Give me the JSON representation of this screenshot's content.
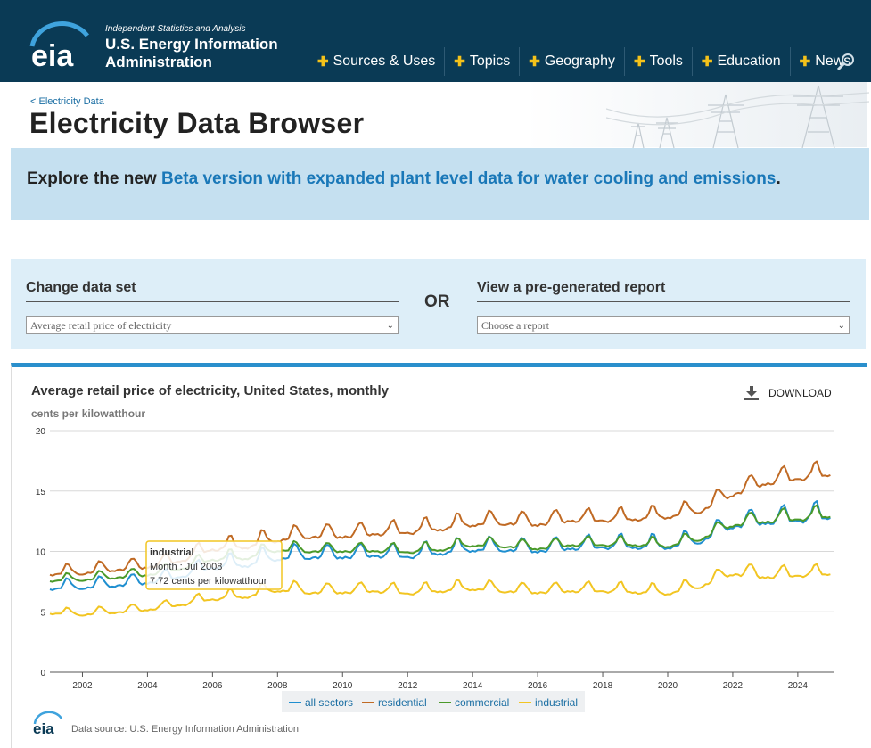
{
  "header": {
    "tagline": "Independent Statistics and Analysis",
    "agency_line1": "U.S. Energy Information",
    "agency_line2": "Administration",
    "logo_text": "eia",
    "nav": [
      {
        "label": "Sources & Uses"
      },
      {
        "label": "Topics"
      },
      {
        "label": "Geography"
      },
      {
        "label": "Tools"
      },
      {
        "label": "Education"
      },
      {
        "label": "News"
      }
    ],
    "colors": {
      "bar": "#0a3a55",
      "plus": "#f4c21a"
    }
  },
  "page": {
    "breadcrumb": "< Electricity Data",
    "title": "Electricity Data Browser"
  },
  "banner": {
    "prefix": "Explore the new ",
    "link": "Beta version with expanded plant level data for water cooling and emissions",
    "suffix": "."
  },
  "selectors": {
    "dataset_label": "Change data set",
    "dataset_value": "Average retail price of electricity",
    "or_label": "OR",
    "report_label": "View a pre-generated report",
    "report_value": "Choose a report"
  },
  "chart_panel": {
    "download_label": "DOWNLOAD",
    "source_text": "Data source: U.S. Energy Information Administration"
  },
  "chart_data": {
    "type": "line",
    "title": "Average retail price of electricity, United States, monthly",
    "ylabel": "cents per kilowatthour",
    "xlabel": "",
    "xlim": [
      2001,
      2025.1
    ],
    "ylim": [
      0,
      20
    ],
    "yticks": [
      0,
      5,
      10,
      15,
      20
    ],
    "xticks": [
      2002,
      2004,
      2006,
      2008,
      2010,
      2012,
      2014,
      2016,
      2018,
      2020,
      2022,
      2024
    ],
    "grid": true,
    "legend_position": "bottom",
    "series": [
      {
        "name": "all sectors",
        "color": "#1f8fd0",
        "anchors": [
          [
            2001,
            7.1
          ],
          [
            2002,
            7.2
          ],
          [
            2003,
            7.4
          ],
          [
            2004,
            7.6
          ],
          [
            2005,
            8.1
          ],
          [
            2006,
            8.9
          ],
          [
            2007,
            9.1
          ],
          [
            2008,
            9.7
          ],
          [
            2009,
            9.8
          ],
          [
            2010,
            9.8
          ],
          [
            2011,
            9.9
          ],
          [
            2012,
            9.8
          ],
          [
            2013,
            10.1
          ],
          [
            2014,
            10.4
          ],
          [
            2015,
            10.4
          ],
          [
            2016,
            10.3
          ],
          [
            2017,
            10.5
          ],
          [
            2018,
            10.6
          ],
          [
            2019,
            10.6
          ],
          [
            2020,
            10.6
          ],
          [
            2021,
            11.1
          ],
          [
            2022,
            12.4
          ],
          [
            2023,
            12.7
          ],
          [
            2024,
            12.9
          ],
          [
            2025,
            13.1
          ]
        ],
        "amp": [
          0.55,
          0.6,
          0.6,
          0.6,
          0.65,
          0.75,
          0.8,
          0.8,
          0.75,
          0.75,
          0.75,
          0.75,
          0.75,
          0.75,
          0.75,
          0.75,
          0.75,
          0.75,
          0.75,
          0.75,
          0.8,
          0.9,
          0.95,
          1.0,
          1.0
        ]
      },
      {
        "name": "residential",
        "color": "#c06a24",
        "anchors": [
          [
            2001,
            8.3
          ],
          [
            2002,
            8.4
          ],
          [
            2003,
            8.7
          ],
          [
            2004,
            8.9
          ],
          [
            2005,
            9.4
          ],
          [
            2006,
            10.4
          ],
          [
            2007,
            10.6
          ],
          [
            2008,
            11.2
          ],
          [
            2009,
            11.5
          ],
          [
            2010,
            11.5
          ],
          [
            2011,
            11.7
          ],
          [
            2012,
            11.8
          ],
          [
            2013,
            12.1
          ],
          [
            2014,
            12.5
          ],
          [
            2015,
            12.6
          ],
          [
            2016,
            12.5
          ],
          [
            2017,
            12.8
          ],
          [
            2018,
            12.8
          ],
          [
            2019,
            12.9
          ],
          [
            2020,
            13.1
          ],
          [
            2021,
            13.6
          ],
          [
            2022,
            15.0
          ],
          [
            2023,
            15.9
          ],
          [
            2024,
            16.3
          ],
          [
            2025,
            16.6
          ]
        ],
        "amp": [
          0.55,
          0.6,
          0.6,
          0.6,
          0.65,
          0.7,
          0.75,
          0.75,
          0.75,
          0.75,
          0.75,
          0.75,
          0.75,
          0.75,
          0.75,
          0.75,
          0.7,
          0.7,
          0.7,
          0.7,
          0.75,
          0.8,
          0.85,
          0.85,
          0.85
        ]
      },
      {
        "name": "commercial",
        "color": "#4a9a2a",
        "anchors": [
          [
            2001,
            7.7
          ],
          [
            2002,
            7.8
          ],
          [
            2003,
            8.0
          ],
          [
            2004,
            8.2
          ],
          [
            2005,
            8.7
          ],
          [
            2006,
            9.5
          ],
          [
            2007,
            9.6
          ],
          [
            2008,
            10.3
          ],
          [
            2009,
            10.2
          ],
          [
            2010,
            10.2
          ],
          [
            2011,
            10.2
          ],
          [
            2012,
            10.1
          ],
          [
            2013,
            10.3
          ],
          [
            2014,
            10.7
          ],
          [
            2015,
            10.6
          ],
          [
            2016,
            10.4
          ],
          [
            2017,
            10.7
          ],
          [
            2018,
            10.7
          ],
          [
            2019,
            10.7
          ],
          [
            2020,
            10.6
          ],
          [
            2021,
            11.2
          ],
          [
            2022,
            12.4
          ],
          [
            2023,
            12.7
          ],
          [
            2024,
            12.9
          ],
          [
            2025,
            13.1
          ]
        ],
        "amp": [
          0.4,
          0.45,
          0.45,
          0.45,
          0.5,
          0.55,
          0.55,
          0.55,
          0.5,
          0.5,
          0.5,
          0.5,
          0.5,
          0.5,
          0.5,
          0.5,
          0.5,
          0.5,
          0.5,
          0.5,
          0.55,
          0.65,
          0.7,
          0.7,
          0.7
        ]
      },
      {
        "name": "industrial",
        "color": "#f2c522",
        "anchors": [
          [
            2001,
            5.0
          ],
          [
            2002,
            4.9
          ],
          [
            2003,
            5.1
          ],
          [
            2004,
            5.3
          ],
          [
            2005,
            5.7
          ],
          [
            2006,
            6.2
          ],
          [
            2007,
            6.4
          ],
          [
            2008,
            7.0
          ],
          [
            2009,
            6.8
          ],
          [
            2010,
            6.8
          ],
          [
            2011,
            6.9
          ],
          [
            2012,
            6.7
          ],
          [
            2013,
            6.9
          ],
          [
            2014,
            7.1
          ],
          [
            2015,
            6.9
          ],
          [
            2016,
            6.8
          ],
          [
            2017,
            6.9
          ],
          [
            2018,
            6.9
          ],
          [
            2019,
            6.8
          ],
          [
            2020,
            6.7
          ],
          [
            2021,
            7.3
          ],
          [
            2022,
            8.4
          ],
          [
            2023,
            8.1
          ],
          [
            2024,
            8.2
          ],
          [
            2025,
            8.3
          ]
        ],
        "amp": [
          0.35,
          0.4,
          0.4,
          0.4,
          0.45,
          0.5,
          0.55,
          0.6,
          0.55,
          0.55,
          0.55,
          0.55,
          0.55,
          0.55,
          0.55,
          0.55,
          0.55,
          0.55,
          0.55,
          0.55,
          0.6,
          0.7,
          0.65,
          0.6,
          0.6
        ]
      }
    ],
    "tooltip": {
      "series": "industrial",
      "line1": "Month : Jul 2008",
      "line2": "7.72 cents per kilowatthour"
    }
  }
}
